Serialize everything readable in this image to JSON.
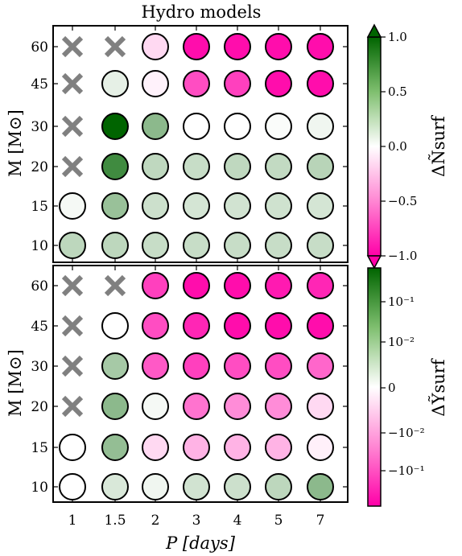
{
  "figure": {
    "title": "Hydro models",
    "xlabel": "P [days]",
    "ylabel": "M [M⊙]"
  },
  "colors": {
    "max_green": "#006400",
    "max_pink": "#ff00a8",
    "neutral": "#ffffff",
    "cross": "#808080"
  },
  "chart_data": [
    {
      "type": "heatmap",
      "panel": "top",
      "quantity": "ΔÑsurf",
      "x_categories": [
        "1",
        "1.5",
        "2",
        "3",
        "4",
        "5",
        "7"
      ],
      "y_categories": [
        "10",
        "15",
        "20",
        "30",
        "45",
        "60"
      ],
      "colorbar": {
        "label": "ΔÑsurf",
        "ticks": [
          "1.0",
          "0.5",
          "0.0",
          "−0.5",
          "−1.0"
        ],
        "range": [
          -1.0,
          1.0
        ],
        "extend": "both"
      },
      "cells": [
        {
          "M": "60",
          "values": [
            null,
            null,
            -0.15,
            -0.95,
            -0.95,
            -0.95,
            -0.95
          ]
        },
        {
          "M": "45",
          "values": [
            null,
            0.1,
            -0.05,
            -0.7,
            -0.75,
            -0.95,
            -0.95
          ]
        },
        {
          "M": "30",
          "values": [
            null,
            1.0,
            0.45,
            0.0,
            0.0,
            0.02,
            0.06
          ]
        },
        {
          "M": "20",
          "values": [
            null,
            0.75,
            0.25,
            0.22,
            0.25,
            0.24,
            0.28
          ]
        },
        {
          "M": "15",
          "values": [
            0.04,
            0.4,
            0.2,
            0.17,
            0.18,
            0.19,
            0.17
          ]
        },
        {
          "M": "10",
          "values": [
            0.26,
            0.26,
            0.22,
            0.22,
            0.22,
            0.22,
            0.22
          ]
        }
      ]
    },
    {
      "type": "heatmap",
      "panel": "bottom",
      "quantity": "ΔỸsurf",
      "x_categories": [
        "1",
        "1.5",
        "2",
        "3",
        "4",
        "5",
        "7"
      ],
      "y_categories": [
        "10",
        "15",
        "20",
        "30",
        "45",
        "60"
      ],
      "colorbar": {
        "label": "ΔỸsurf",
        "ticks": [
          "10⁻¹",
          "10⁻²",
          "0",
          "−10⁻²",
          "−10⁻¹"
        ],
        "scale": "symlog",
        "extend": "neither"
      },
      "cells": [
        {
          "M": "60",
          "values": [
            null,
            null,
            -0.75,
            -0.95,
            -0.95,
            -0.9,
            -0.85
          ]
        },
        {
          "M": "45",
          "values": [
            null,
            0.0,
            -0.7,
            -0.85,
            -0.95,
            -0.95,
            -0.95
          ]
        },
        {
          "M": "30",
          "values": [
            null,
            0.35,
            -0.65,
            -0.75,
            -0.7,
            -0.7,
            -0.6
          ]
        },
        {
          "M": "20",
          "values": [
            null,
            0.45,
            0.04,
            -0.55,
            -0.45,
            -0.45,
            -0.15
          ]
        },
        {
          "M": "15",
          "values": [
            0.0,
            0.42,
            -0.15,
            -0.3,
            -0.3,
            -0.3,
            -0.06
          ]
        },
        {
          "M": "10",
          "values": [
            0.0,
            0.15,
            0.06,
            0.18,
            0.2,
            0.26,
            0.45
          ]
        }
      ]
    }
  ]
}
